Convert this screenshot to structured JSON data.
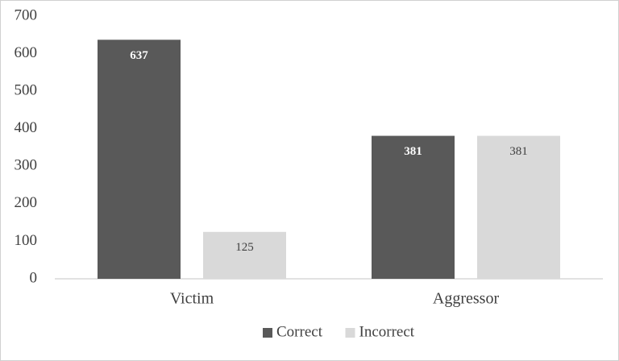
{
  "chart_data": {
    "type": "bar",
    "categories": [
      "Victim",
      "Aggressor"
    ],
    "series": [
      {
        "name": "Correct",
        "color": "#595959",
        "values": [
          637,
          381
        ]
      },
      {
        "name": "Incorrect",
        "color": "#d9d9d9",
        "values": [
          125,
          381
        ]
      }
    ],
    "ylim": [
      0,
      700
    ],
    "yticks": [
      0,
      100,
      200,
      300,
      400,
      500,
      600,
      700
    ],
    "grid": false,
    "legend": "bottom",
    "data_labels": true
  }
}
